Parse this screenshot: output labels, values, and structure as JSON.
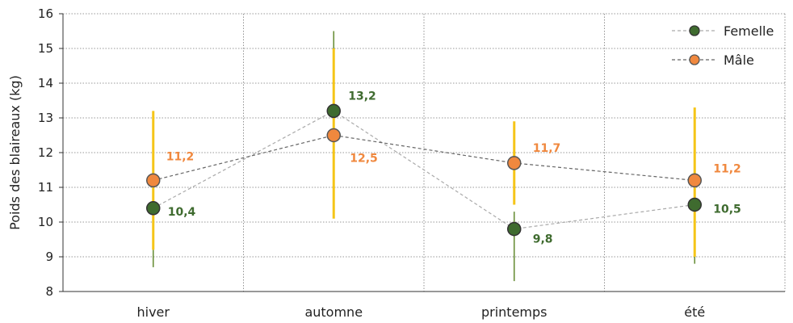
{
  "chart_data": {
    "type": "scatter",
    "ylabel": "Poids des blaireaux (kg)",
    "xlabel": "",
    "ylim": [
      8,
      16
    ],
    "yticks": [
      8,
      9,
      10,
      11,
      12,
      13,
      14,
      15,
      16
    ],
    "categories": [
      "hiver",
      "automne",
      "printemps",
      "été"
    ],
    "grid": "dotted",
    "legend_position": "top-right",
    "series": [
      {
        "name": "Femelle",
        "color": "#3f6b2f",
        "bar_color": "#6a8f3a",
        "line_color": "#aaaaaa",
        "values": [
          10.4,
          13.2,
          9.8,
          10.5
        ],
        "labels": [
          "10,4",
          "13,2",
          "9,8",
          "10,5"
        ],
        "err_low": [
          8.7,
          11.2,
          8.3,
          8.8
        ],
        "err_high": [
          9.2,
          15.5,
          10.3,
          11.9
        ]
      },
      {
        "name": "Mâle",
        "color": "#f0883e",
        "bar_color": "#f5c518",
        "line_color": "#666666",
        "values": [
          11.2,
          12.5,
          11.7,
          11.2
        ],
        "labels": [
          "11,2",
          "12,5",
          "11,7",
          "11,2"
        ],
        "err_low": [
          9.2,
          10.1,
          10.5,
          9.0
        ],
        "err_high": [
          13.2,
          15.0,
          12.9,
          13.3
        ]
      }
    ]
  }
}
